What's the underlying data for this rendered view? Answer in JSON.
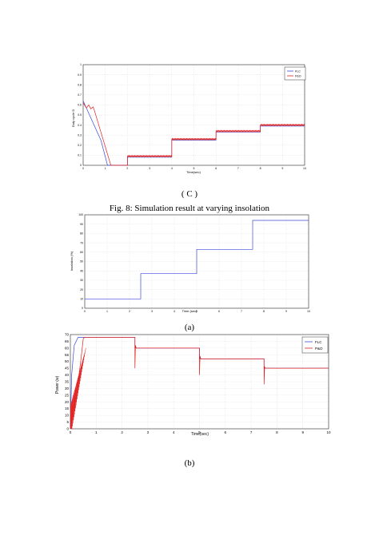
{
  "captions": {
    "c": "( C )",
    "fig8": "Fig. 8: Simulation result at varying insolation",
    "a": "(a)",
    "b": "(b)"
  },
  "colors": {
    "flc": "#3b4bd8",
    "po": "#e02020",
    "grid": "#d8d8d8"
  },
  "chart_data": [
    {
      "id": "chart-c",
      "type": "line",
      "title": "",
      "xlabel": "Time(sec)",
      "ylabel": "Duty cycle D",
      "xlim": [
        0,
        10
      ],
      "ylim": [
        0,
        1
      ],
      "xticks": [
        "0",
        "1",
        "2",
        "3",
        "4",
        "5",
        "6",
        "7",
        "8",
        "9",
        "10"
      ],
      "yticks": [
        "0",
        "0.1",
        "0.2",
        "0.3",
        "0.4",
        "0.5",
        "0.6",
        "0.7",
        "0.8",
        "0.9",
        "1"
      ],
      "legend": {
        "position": "top-right",
        "entries": [
          "FLC",
          "P&O"
        ]
      },
      "grid": true,
      "series": [
        {
          "name": "FLC",
          "color": "#3b4bd8",
          "x": [
            0,
            0.8,
            1.1,
            2.0,
            2.0,
            4.0,
            4.0,
            6.0,
            6.0,
            8.0,
            8.0,
            10.0
          ],
          "y": [
            0.64,
            0.25,
            0.0,
            0.0,
            0.08,
            0.08,
            0.25,
            0.25,
            0.33,
            0.33,
            0.39,
            0.39
          ]
        },
        {
          "name": "P&O",
          "color": "#e02020",
          "x": [
            0,
            0.15,
            0.25,
            0.35,
            0.45,
            0.5,
            1.25,
            2.0,
            2.0,
            4.0,
            4.0,
            6.0,
            6.0,
            8.0,
            8.0,
            10.0
          ],
          "y": [
            0.62,
            0.57,
            0.6,
            0.56,
            0.58,
            0.55,
            0.0,
            0.0,
            0.09,
            0.09,
            0.26,
            0.26,
            0.34,
            0.34,
            0.4,
            0.4
          ],
          "ripple": 0.01
        }
      ]
    },
    {
      "id": "chart-a",
      "type": "line",
      "title": "",
      "xlabel": "Time (sec)",
      "ylabel": "Insolation (%)",
      "xlim": [
        0,
        10
      ],
      "ylim": [
        0,
        100
      ],
      "xticks": [
        "0",
        "1",
        "2",
        "3",
        "4",
        "5",
        "6",
        "7",
        "8",
        "9",
        "10"
      ],
      "yticks": [
        "0",
        "10",
        "20",
        "30",
        "40",
        "50",
        "60",
        "70",
        "80",
        "90",
        "100"
      ],
      "grid": true,
      "series": [
        {
          "color": "#3b4bd8",
          "x": [
            0,
            2.5,
            2.5,
            5.0,
            5.0,
            7.5,
            7.5,
            10.0
          ],
          "y": [
            10,
            10,
            37,
            37,
            63,
            63,
            94,
            94
          ]
        }
      ]
    },
    {
      "id": "chart-b",
      "type": "line",
      "title": "",
      "xlabel": "Time(sec)",
      "ylabel": "Power (w)",
      "xlim": [
        0,
        10
      ],
      "ylim": [
        0,
        70
      ],
      "xticks": [
        "0",
        "1",
        "2",
        "3",
        "4",
        "5",
        "6",
        "7",
        "8",
        "9",
        "10"
      ],
      "yticks": [
        "0",
        "5",
        "10",
        "15",
        "20",
        "25",
        "30",
        "35",
        "40",
        "45",
        "50",
        "55",
        "60",
        "65",
        "70"
      ],
      "legend": {
        "position": "top-right",
        "entries": [
          "FLC",
          "P&O"
        ]
      },
      "grid": true,
      "series": [
        {
          "name": "FLC",
          "color": "#3b4bd8",
          "x": [
            0,
            0.05,
            0.15,
            0.3,
            0.45,
            2.5,
            2.5,
            5.0,
            5.0,
            7.5,
            7.5,
            10.0
          ],
          "y": [
            0,
            40,
            62,
            68,
            68,
            68,
            60,
            60,
            52,
            52,
            45,
            45
          ]
        },
        {
          "name": "P&O",
          "color": "#e02020",
          "x": [
            0,
            0.1,
            0.2,
            0.3,
            0.4,
            0.5,
            0.55,
            2.5,
            2.5,
            2.52,
            2.55,
            5.0,
            5.0,
            5.02,
            5.05,
            7.5,
            7.5,
            7.52,
            7.55,
            10.0
          ],
          "y": [
            0,
            15,
            25,
            35,
            50,
            67,
            68,
            68,
            45,
            62,
            60,
            60,
            40,
            54,
            52,
            52,
            33,
            46,
            45,
            45
          ],
          "noisy_start": [
            0,
            0.6
          ]
        }
      ]
    }
  ]
}
